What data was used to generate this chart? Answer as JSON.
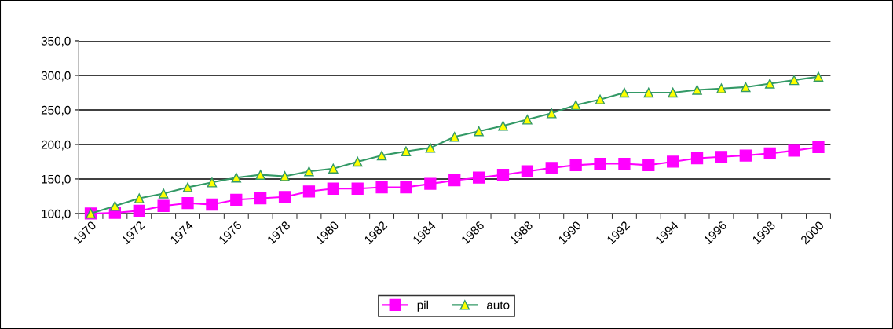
{
  "chart_data": {
    "type": "line",
    "categories": [
      "1970",
      null,
      "1972",
      null,
      "1974",
      null,
      "1976",
      null,
      "1978",
      null,
      "1980",
      null,
      "1982",
      null,
      "1984",
      null,
      "1986",
      null,
      "1988",
      null,
      "1990",
      null,
      "1992",
      null,
      "1994",
      null,
      "1996",
      null,
      "1998",
      null,
      "2000"
    ],
    "series": [
      {
        "name": "pil",
        "color": "#ff00ff",
        "marker": "square",
        "values": [
          100,
          101,
          104,
          111,
          115,
          113,
          120,
          122,
          124,
          132,
          136,
          136,
          138,
          138,
          143,
          148,
          152,
          156,
          161,
          166,
          170,
          172,
          172,
          170,
          175,
          180,
          182,
          184,
          187,
          191,
          196
        ]
      },
      {
        "name": "auto",
        "color": "#339966",
        "marker": "triangle",
        "values": [
          100,
          111,
          122,
          129,
          138,
          145,
          152,
          156,
          154,
          161,
          165,
          175,
          184,
          190,
          195,
          211,
          219,
          227,
          236,
          245,
          257,
          265,
          275,
          275,
          275,
          279,
          281,
          283,
          288,
          293,
          298
        ]
      }
    ],
    "ylim": [
      100,
      350
    ],
    "yticks": [
      {
        "value": 100,
        "label": "100,0"
      },
      {
        "value": 150,
        "label": "150,0"
      },
      {
        "value": 200,
        "label": "200,0"
      },
      {
        "value": 250,
        "label": "250,0"
      },
      {
        "value": 300,
        "label": "300,0"
      },
      {
        "value": 350,
        "label": "350,0"
      }
    ],
    "grid": "y",
    "legend": "bottom",
    "line_style": "solid"
  }
}
